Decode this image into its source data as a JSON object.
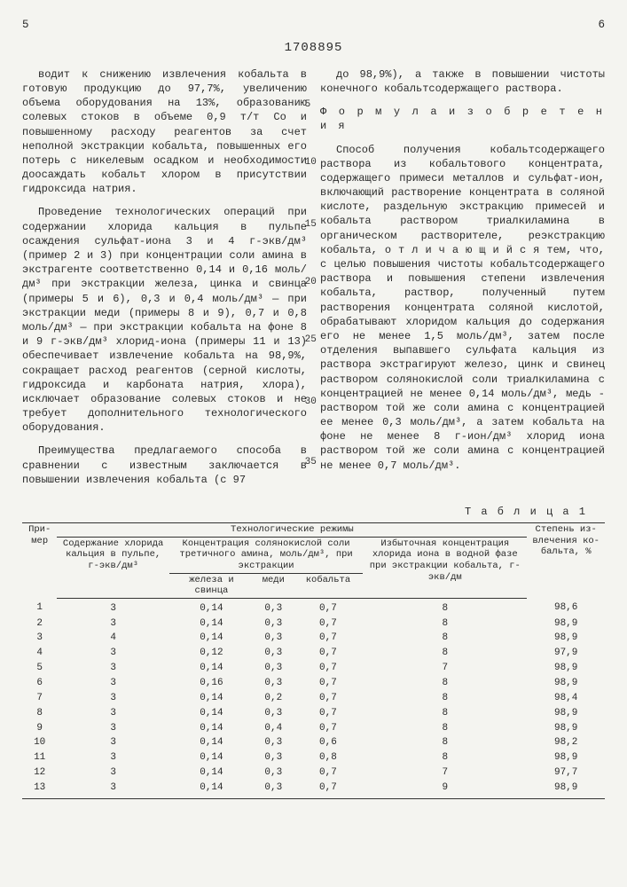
{
  "page": {
    "left_num": "5",
    "right_num": "6",
    "patent": "1708895"
  },
  "col_left": {
    "p1": "водит к снижению извлечения кобальта в готовую продукцию до 97,7%, увеличению объема оборудования на 13%, образованию солевых стоков в объеме 0,9 т/т Со и повышенному расходу реагентов за счет неполной экстракции кобальта, повышенных его потерь с никелевым осадком и необходимости доосаждать кобальт хлором в присутствии гидроксида натрия.",
    "p2": "Проведение технологических операций при содержании хлорида кальция в пульпе осаждения сульфат-иона 3 и 4 г-экв/дм³ (пример 2 и 3) при концентрации соли амина в экстрагенте соответственно 0,14 и 0,16 моль/дм³ при экстракции железа, цинка и свинца (примеры 5 и 6), 0,3 и 0,4 моль/дм³ — при экстракции меди (примеры 8 и 9), 0,7 и 0,8 моль/дм³ — при экстракции кобальта на фоне 8 и 9 г-экв/дм³ хлорид-иона (примеры 11 и 13) обеспечивает извлечение кобальта на 98,9%, сокращает расход реагентов (серной кислоты, гидроксида и карбоната натрия, хлора), исключает образование солевых стоков и не требует дополнительного технологического оборудования.",
    "p3": "Преимущества предлагаемого способа в сравнении с известным заключается в повышении извлечения кобальта (с 97"
  },
  "col_right": {
    "p1": "до 98,9%), а также в повышении чистоты конечного кобальтсодержащего раствора.",
    "formula": "Ф о р м у л а  и з о б р е т е н и я",
    "p2": "Способ получения кобальтсодержащего раствора из кобальтового концентрата, содержащего примеси металлов и сульфат-ион, включающий растворение концентрата в соляной кислоте, раздельную экстракцию примесей и кобальта раствором триалкиламина в органическом растворителе, реэкстракцию кобальта, о т л и ч а ю щ и й с я  тем, что, с целью повышения чистоты кобальтсодержащего раствора и повышения степени извлечения кобальта, раствор, полученный путем растворения концентрата соляной кислотой, обрабатывают хлоридом кальция до содержания его не менее 1,5 моль/дм³, затем после отделения выпавшего сульфата кальция из раствора экстрагируют железо, цинк и свинец раствором солянокислой соли триалкиламина с концентрацией не менее 0,14 моль/дм³, медь - раствором той же соли амина с концентрацией ее менее 0,3 моль/дм³, а затем кобальта на фоне не менее 8 г-ион/дм³ хлорид иона раствором той же соли амина с концентрацией не менее 0,7 моль/дм³."
  },
  "line_markers": {
    "m5": "5",
    "m10": "10",
    "m15": "15",
    "m20": "20",
    "m25": "25",
    "m30": "30",
    "m35": "35"
  },
  "table": {
    "label": "Т а б л и ц а  1",
    "head": {
      "c1": "При-\nмер",
      "c2_group": "Технологические режимы",
      "c2a": "Содержание хло­рида кальция в пуль­пе, г-экв/дм³",
      "c2b_group": "Концентрация солянокислой соли третичного амина, моль/дм³, при экстракции",
      "c2b1": "железа и свинца",
      "c2b2": "меди",
      "c2b3": "кобальта",
      "c2c": "Избыточная концентра­ция хлорида иона в вод­ной фазе при экстракции кобальта, г-экв/дм",
      "c3": "Сте­пень из­влече­ния ко­бальта, %"
    },
    "rows": [
      [
        "1",
        "3",
        "0,14",
        "0,3",
        "0,7",
        "8",
        "98,6"
      ],
      [
        "2",
        "3",
        "0,14",
        "0,3",
        "0,7",
        "8",
        "98,9"
      ],
      [
        "3",
        "4",
        "0,14",
        "0,3",
        "0,7",
        "8",
        "98,9"
      ],
      [
        "4",
        "3",
        "0,12",
        "0,3",
        "0,7",
        "8",
        "97,9"
      ],
      [
        "5",
        "3",
        "0,14",
        "0,3",
        "0,7",
        "7",
        "98,9"
      ],
      [
        "6",
        "3",
        "0,16",
        "0,3",
        "0,7",
        "8",
        "98,9"
      ],
      [
        "7",
        "3",
        "0,14",
        "0,2",
        "0,7",
        "8",
        "98,4"
      ],
      [
        "8",
        "3",
        "0,14",
        "0,3",
        "0,7",
        "8",
        "98,9"
      ],
      [
        "9",
        "3",
        "0,14",
        "0,4",
        "0,7",
        "8",
        "98,9"
      ],
      [
        "10",
        "3",
        "0,14",
        "0,3",
        "0,6",
        "8",
        "98,2"
      ],
      [
        "11",
        "3",
        "0,14",
        "0,3",
        "0,8",
        "8",
        "98,9"
      ],
      [
        "12",
        "3",
        "0,14",
        "0,3",
        "0,7",
        "7",
        "97,7"
      ],
      [
        "13",
        "3",
        "0,14",
        "0,3",
        "0,7",
        "9",
        "98,9"
      ]
    ]
  }
}
